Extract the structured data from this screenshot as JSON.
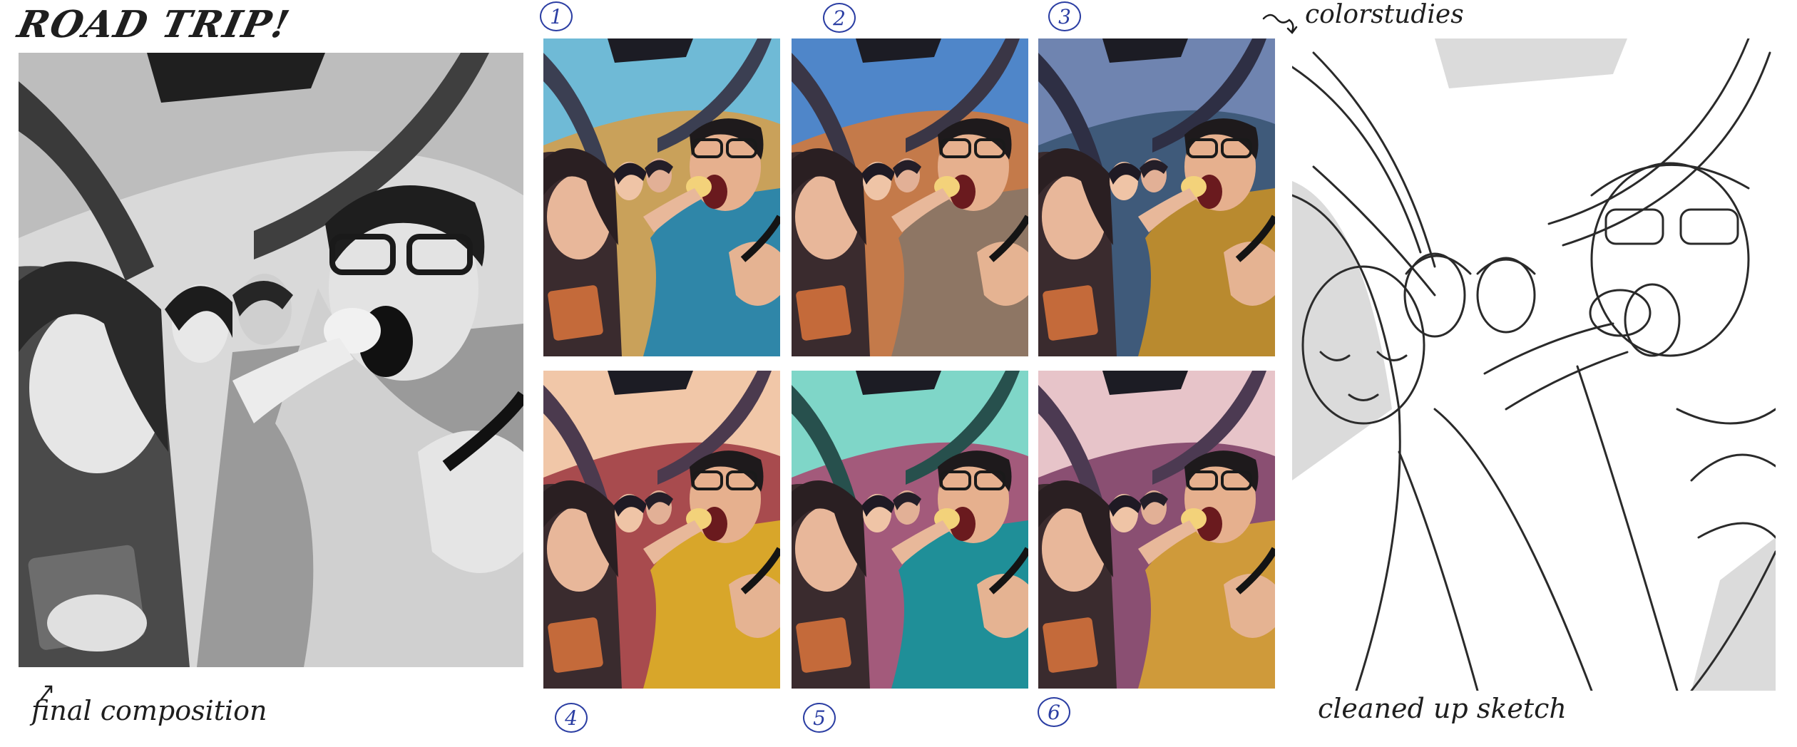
{
  "page": {
    "title": "ROAD TRIP!",
    "final_label": "final composition",
    "color_studies_label": "colorstudies",
    "cleaned_label": "cleaned up sketch"
  },
  "studies": [
    {
      "number": "1",
      "sky": "#6fbad6",
      "frame": "#3b3f52",
      "shirt": "#2f86a8",
      "bg": "#c9a15a"
    },
    {
      "number": "2",
      "sky": "#4f86c9",
      "frame": "#3a3646",
      "shirt": "#8e7664",
      "bg": "#c47a4a"
    },
    {
      "number": "3",
      "sky": "#6f84b0",
      "frame": "#2e2f44",
      "shirt": "#b98a2f",
      "bg": "#3f5a7a"
    },
    {
      "number": "4",
      "sky": "#f1c7a8",
      "frame": "#4b3a4e",
      "shirt": "#d8a62a",
      "bg": "#a84b4e"
    },
    {
      "number": "5",
      "sky": "#7fd6c8",
      "frame": "#27504d",
      "shirt": "#1f8f98",
      "bg": "#a35a7b"
    },
    {
      "number": "6",
      "sky": "#e7c4c9",
      "frame": "#4c3a52",
      "shirt": "#cf9a3a",
      "bg": "#8a4f72"
    }
  ]
}
